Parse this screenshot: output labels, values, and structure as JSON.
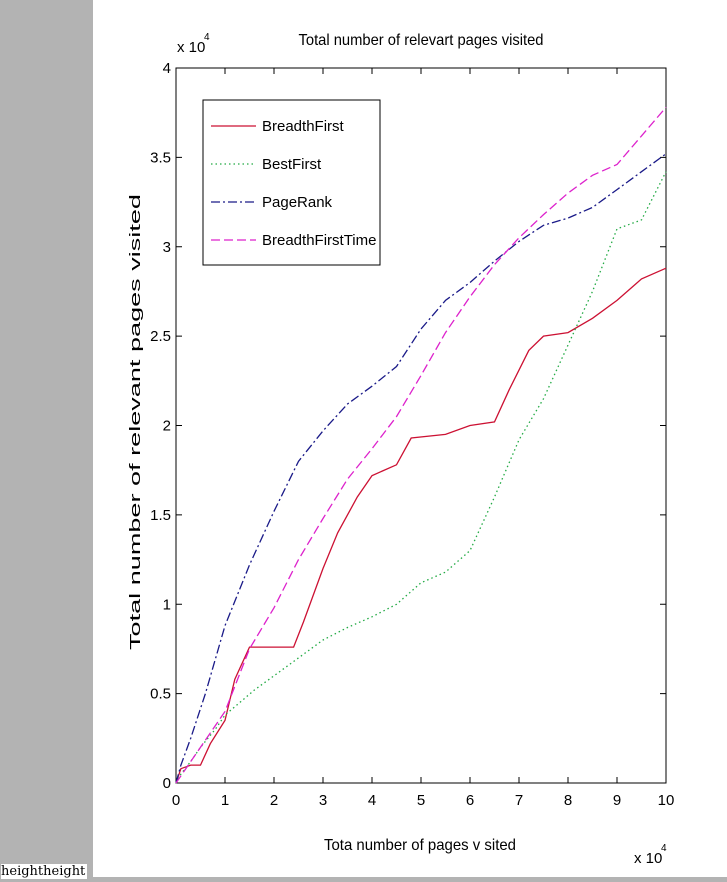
{
  "stray_text": "heightheight",
  "chart_data": {
    "type": "line",
    "title": "Total number of relevart pages visited",
    "xlabel": "Tota number of pages v sited",
    "ylabel": "Total number of relevant pages visited",
    "x_multiplier": "x 10",
    "y_multiplier": "x 10",
    "multiplier_exponent": "4",
    "xlim": [
      0,
      10
    ],
    "ylim": [
      0,
      4
    ],
    "x_ticks": [
      "0",
      "1",
      "2",
      "3",
      "4",
      "5",
      "6",
      "7",
      "8",
      "9",
      "10"
    ],
    "y_ticks": [
      "0",
      "0.5",
      "1",
      "1.5",
      "2",
      "2.5",
      "3",
      "3.5",
      "4"
    ],
    "grid": false,
    "legend_position": "top-left",
    "series": [
      {
        "name": "BreadthFirst",
        "color": "#cc1133",
        "style": "solid",
        "x": [
          0,
          0.1,
          0.3,
          0.5,
          0.7,
          1.0,
          1.2,
          1.5,
          2.0,
          2.4,
          2.6,
          3.0,
          3.3,
          3.7,
          4.0,
          4.5,
          4.8,
          5.5,
          6.0,
          6.5,
          6.8,
          7.2,
          7.5,
          8.0,
          8.5,
          9.0,
          9.5,
          10.0
        ],
        "y": [
          0,
          0.08,
          0.1,
          0.1,
          0.22,
          0.35,
          0.58,
          0.76,
          0.76,
          0.76,
          0.9,
          1.2,
          1.4,
          1.6,
          1.72,
          1.78,
          1.93,
          1.95,
          2.0,
          2.02,
          2.2,
          2.42,
          2.5,
          2.52,
          2.6,
          2.7,
          2.82,
          2.88
        ]
      },
      {
        "name": "BestFirst",
        "color": "#22aa44",
        "style": "dotted",
        "x": [
          0,
          0.1,
          0.3,
          0.5,
          0.8,
          1.0,
          1.3,
          1.6,
          2.0,
          2.5,
          3.0,
          3.5,
          4.0,
          4.5,
          5.0,
          5.5,
          6.0,
          6.5,
          7.0,
          7.5,
          8.0,
          8.5,
          9.0,
          9.5,
          10.0
        ],
        "y": [
          0,
          0.05,
          0.12,
          0.2,
          0.3,
          0.38,
          0.45,
          0.52,
          0.6,
          0.7,
          0.8,
          0.87,
          0.93,
          1.0,
          1.12,
          1.18,
          1.3,
          1.6,
          1.92,
          2.15,
          2.45,
          2.75,
          3.1,
          3.15,
          3.42
        ]
      },
      {
        "name": "PageRank",
        "color": "#1a1a88",
        "style": "dashdot",
        "x": [
          0,
          0.1,
          0.3,
          0.6,
          1.0,
          1.5,
          2.0,
          2.5,
          3.0,
          3.5,
          4.0,
          4.5,
          5.0,
          5.5,
          6.0,
          6.5,
          7.0,
          7.5,
          8.0,
          8.5,
          9.0,
          9.5,
          10.0
        ],
        "y": [
          0,
          0.1,
          0.25,
          0.5,
          0.88,
          1.22,
          1.52,
          1.8,
          1.97,
          2.12,
          2.22,
          2.33,
          2.54,
          2.7,
          2.8,
          2.92,
          3.03,
          3.12,
          3.16,
          3.22,
          3.32,
          3.42,
          3.52
        ]
      },
      {
        "name": "BreadthFirstTime",
        "color": "#dd22cc",
        "style": "dashed",
        "x": [
          0,
          0.2,
          0.5,
          1.0,
          1.5,
          2.0,
          2.5,
          3.0,
          3.5,
          4.0,
          4.5,
          5.0,
          5.5,
          6.0,
          6.5,
          7.0,
          7.5,
          8.0,
          8.5,
          9.0,
          9.5,
          10.0
        ],
        "y": [
          0,
          0.08,
          0.2,
          0.4,
          0.75,
          0.98,
          1.25,
          1.48,
          1.7,
          1.87,
          2.05,
          2.28,
          2.52,
          2.72,
          2.9,
          3.05,
          3.18,
          3.3,
          3.4,
          3.46,
          3.62,
          3.78
        ]
      }
    ]
  }
}
